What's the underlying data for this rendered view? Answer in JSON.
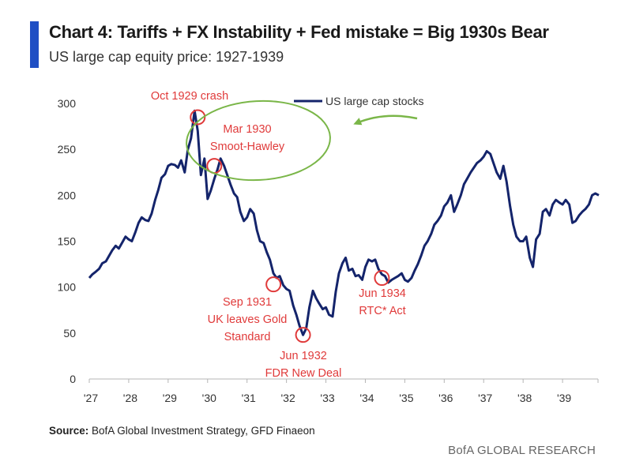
{
  "header": {
    "title": "Chart 4: Tariffs + FX Instability + Fed mistake = Big 1930s Bear",
    "subtitle": "US large cap equity price: 1927-1939"
  },
  "footer": {
    "source_label": "Source:",
    "source_text": "BofA Global Investment Strategy, GFD Finaeon",
    "brand": "BofA GLOBAL RESEARCH"
  },
  "colors": {
    "series": "#14246b",
    "annotation": "#e03a3a",
    "highlight": "#7ab648",
    "accent": "#1f4fc4"
  },
  "chart_data": {
    "type": "line",
    "title": "Chart 4: Tariffs + FX Instability + Fed mistake = Big 1930s Bear",
    "subtitle": "US large cap equity price: 1927-1939",
    "xlabel": "",
    "ylabel": "",
    "xlim": [
      1927.0,
      1940.0
    ],
    "ylim": [
      0,
      300
    ],
    "yticks": [
      0,
      50,
      100,
      150,
      200,
      250,
      300
    ],
    "xticks": [
      {
        "value": 1927,
        "label": "'27"
      },
      {
        "value": 1928,
        "label": "'28"
      },
      {
        "value": 1929,
        "label": "'29"
      },
      {
        "value": 1930,
        "label": "'30"
      },
      {
        "value": 1931,
        "label": "'31"
      },
      {
        "value": 1932,
        "label": "'32"
      },
      {
        "value": 1933,
        "label": "'33"
      },
      {
        "value": 1934,
        "label": "'34"
      },
      {
        "value": 1935,
        "label": "'35"
      },
      {
        "value": 1936,
        "label": "'36"
      },
      {
        "value": 1937,
        "label": "'37"
      },
      {
        "value": 1938,
        "label": "'38"
      },
      {
        "value": 1939,
        "label": "'39"
      }
    ],
    "grid": false,
    "legend": {
      "position": "top-center",
      "entries": [
        "US large cap stocks"
      ]
    },
    "series": [
      {
        "name": "US large cap stocks",
        "x": [
          1927.0,
          1927.08,
          1927.17,
          1927.25,
          1927.33,
          1927.42,
          1927.5,
          1927.58,
          1927.67,
          1927.75,
          1927.83,
          1927.92,
          1928.0,
          1928.08,
          1928.17,
          1928.25,
          1928.33,
          1928.42,
          1928.5,
          1928.58,
          1928.67,
          1928.75,
          1928.83,
          1928.92,
          1929.0,
          1929.08,
          1929.17,
          1929.25,
          1929.33,
          1929.42,
          1929.5,
          1929.58,
          1929.67,
          1929.75,
          1929.83,
          1929.92,
          1930.0,
          1930.08,
          1930.17,
          1930.25,
          1930.33,
          1930.42,
          1930.5,
          1930.58,
          1930.67,
          1930.75,
          1930.83,
          1930.92,
          1931.0,
          1931.08,
          1931.17,
          1931.25,
          1931.33,
          1931.42,
          1931.5,
          1931.58,
          1931.67,
          1931.75,
          1931.83,
          1931.92,
          1932.0,
          1932.08,
          1932.17,
          1932.25,
          1932.33,
          1932.42,
          1932.5,
          1932.58,
          1932.67,
          1932.75,
          1932.83,
          1932.92,
          1933.0,
          1933.08,
          1933.17,
          1933.25,
          1933.33,
          1933.42,
          1933.5,
          1933.58,
          1933.67,
          1933.75,
          1933.83,
          1933.92,
          1934.0,
          1934.08,
          1934.17,
          1934.25,
          1934.33,
          1934.42,
          1934.5,
          1934.58,
          1934.67,
          1934.75,
          1934.83,
          1934.92,
          1935.0,
          1935.08,
          1935.17,
          1935.25,
          1935.33,
          1935.42,
          1935.5,
          1935.58,
          1935.67,
          1935.75,
          1935.83,
          1935.92,
          1936.0,
          1936.08,
          1936.17,
          1936.25,
          1936.33,
          1936.42,
          1936.5,
          1936.58,
          1936.67,
          1936.75,
          1936.83,
          1936.92,
          1937.0,
          1937.08,
          1937.17,
          1937.25,
          1937.33,
          1937.42,
          1937.5,
          1937.58,
          1937.67,
          1937.75,
          1937.83,
          1937.92,
          1938.0,
          1938.08,
          1938.17,
          1938.25,
          1938.33,
          1938.42,
          1938.5,
          1938.58,
          1938.67,
          1938.75,
          1938.83,
          1938.92,
          1939.0,
          1939.08,
          1939.17,
          1939.25,
          1939.33,
          1939.42,
          1939.5,
          1939.58,
          1939.67,
          1939.75,
          1939.83,
          1939.92
        ],
        "values": [
          110,
          114,
          117,
          120,
          126,
          128,
          134,
          140,
          145,
          142,
          148,
          155,
          152,
          150,
          160,
          170,
          176,
          173,
          172,
          180,
          195,
          206,
          219,
          223,
          232,
          234,
          233,
          230,
          238,
          225,
          250,
          262,
          292,
          270,
          222,
          240,
          196,
          205,
          218,
          228,
          240,
          232,
          222,
          212,
          202,
          198,
          182,
          172,
          176,
          185,
          180,
          162,
          150,
          148,
          138,
          130,
          115,
          110,
          112,
          102,
          98,
          96,
          80,
          70,
          58,
          48,
          55,
          78,
          96,
          88,
          82,
          76,
          78,
          70,
          68,
          95,
          115,
          126,
          132,
          118,
          120,
          112,
          113,
          108,
          122,
          130,
          128,
          130,
          120,
          114,
          112,
          105,
          108,
          110,
          112,
          115,
          108,
          106,
          110,
          118,
          125,
          135,
          145,
          150,
          158,
          168,
          172,
          178,
          188,
          192,
          200,
          182,
          190,
          200,
          212,
          218,
          225,
          230,
          235,
          238,
          242,
          248,
          245,
          235,
          225,
          218,
          232,
          215,
          188,
          168,
          155,
          150,
          150,
          155,
          132,
          122,
          152,
          158,
          182,
          185,
          178,
          190,
          195,
          192,
          190,
          195,
          190,
          170,
          172,
          178,
          182,
          185,
          190,
          200,
          202,
          200
        ]
      }
    ],
    "annotations": [
      {
        "label": "Oct 1929 crash",
        "x": 1929.75,
        "y": 285
      },
      {
        "label_lines": [
          "Mar 1930",
          "Smoot-Hawley"
        ],
        "x": 1930.17,
        "y": 232
      },
      {
        "label_lines": [
          "Sep 1931",
          "UK leaves Gold",
          "Standard"
        ],
        "x": 1931.67,
        "y": 103
      },
      {
        "label_lines": [
          "Jun 1932",
          "FDR New Deal"
        ],
        "x": 1932.42,
        "y": 48
      },
      {
        "label_lines": [
          "Jun 1934",
          "RTC* Act"
        ],
        "x": 1934.42,
        "y": 110
      }
    ]
  }
}
